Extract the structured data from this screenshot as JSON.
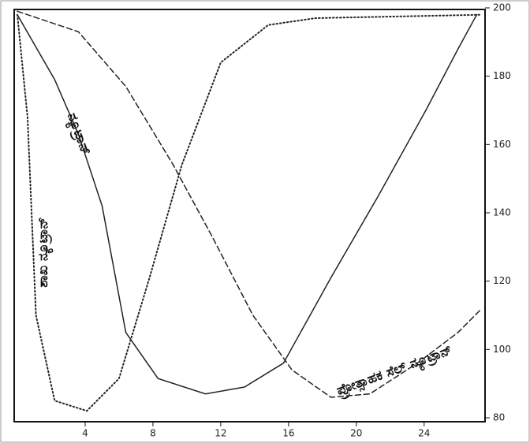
{
  "chart_data": {
    "type": "line",
    "xlim": [
      0,
      27.5
    ],
    "xticks": [
      4,
      8,
      12,
      16,
      20,
      24
    ],
    "ylim": [
      80,
      200
    ],
    "yticks": [
      80,
      100,
      120,
      140,
      160,
      180,
      200
    ],
    "grid": false,
    "series": [
      {
        "name": "ನ್ಯೂಟ್ರಾನ್",
        "color": "#222",
        "style": "solid",
        "x": [
          0,
          2.2,
          3.6,
          5,
          6.4,
          8.3,
          11.1,
          13.4,
          15.7,
          18.5,
          21.3,
          24.1,
          26,
          27.1
        ],
        "values": [
          198,
          179,
          163,
          142,
          105,
          91.5,
          87,
          89,
          96,
          121,
          145,
          170,
          188,
          198
        ]
      },
      {
        "name": "ಪ್ರೋತ್ಸಾಹಕ ಸೆಲ್ ನ್ಯೂಟ್ರಾನ್",
        "color": "#222",
        "style": "dashed",
        "x": [
          0,
          3.6,
          6.4,
          9.2,
          11.5,
          13.9,
          16.2,
          18.5,
          20.8,
          23.6,
          26,
          27.4
        ],
        "values": [
          199,
          193,
          177,
          154,
          133,
          110,
          94,
          86,
          87,
          96,
          105,
          112
        ]
      },
      {
        "name": "ಶಾಖ ನ್ಯೂಟ್ರಾನ್",
        "color": "#222",
        "style": "dotted",
        "x": [
          0,
          0.6,
          1.1,
          2.2,
          4.1,
          6,
          7.8,
          9.7,
          12,
          14.8,
          17.6,
          27.4
        ],
        "values": [
          198,
          168,
          110,
          85,
          82,
          91.5,
          121,
          154,
          184,
          195,
          197,
          198
        ]
      }
    ]
  }
}
